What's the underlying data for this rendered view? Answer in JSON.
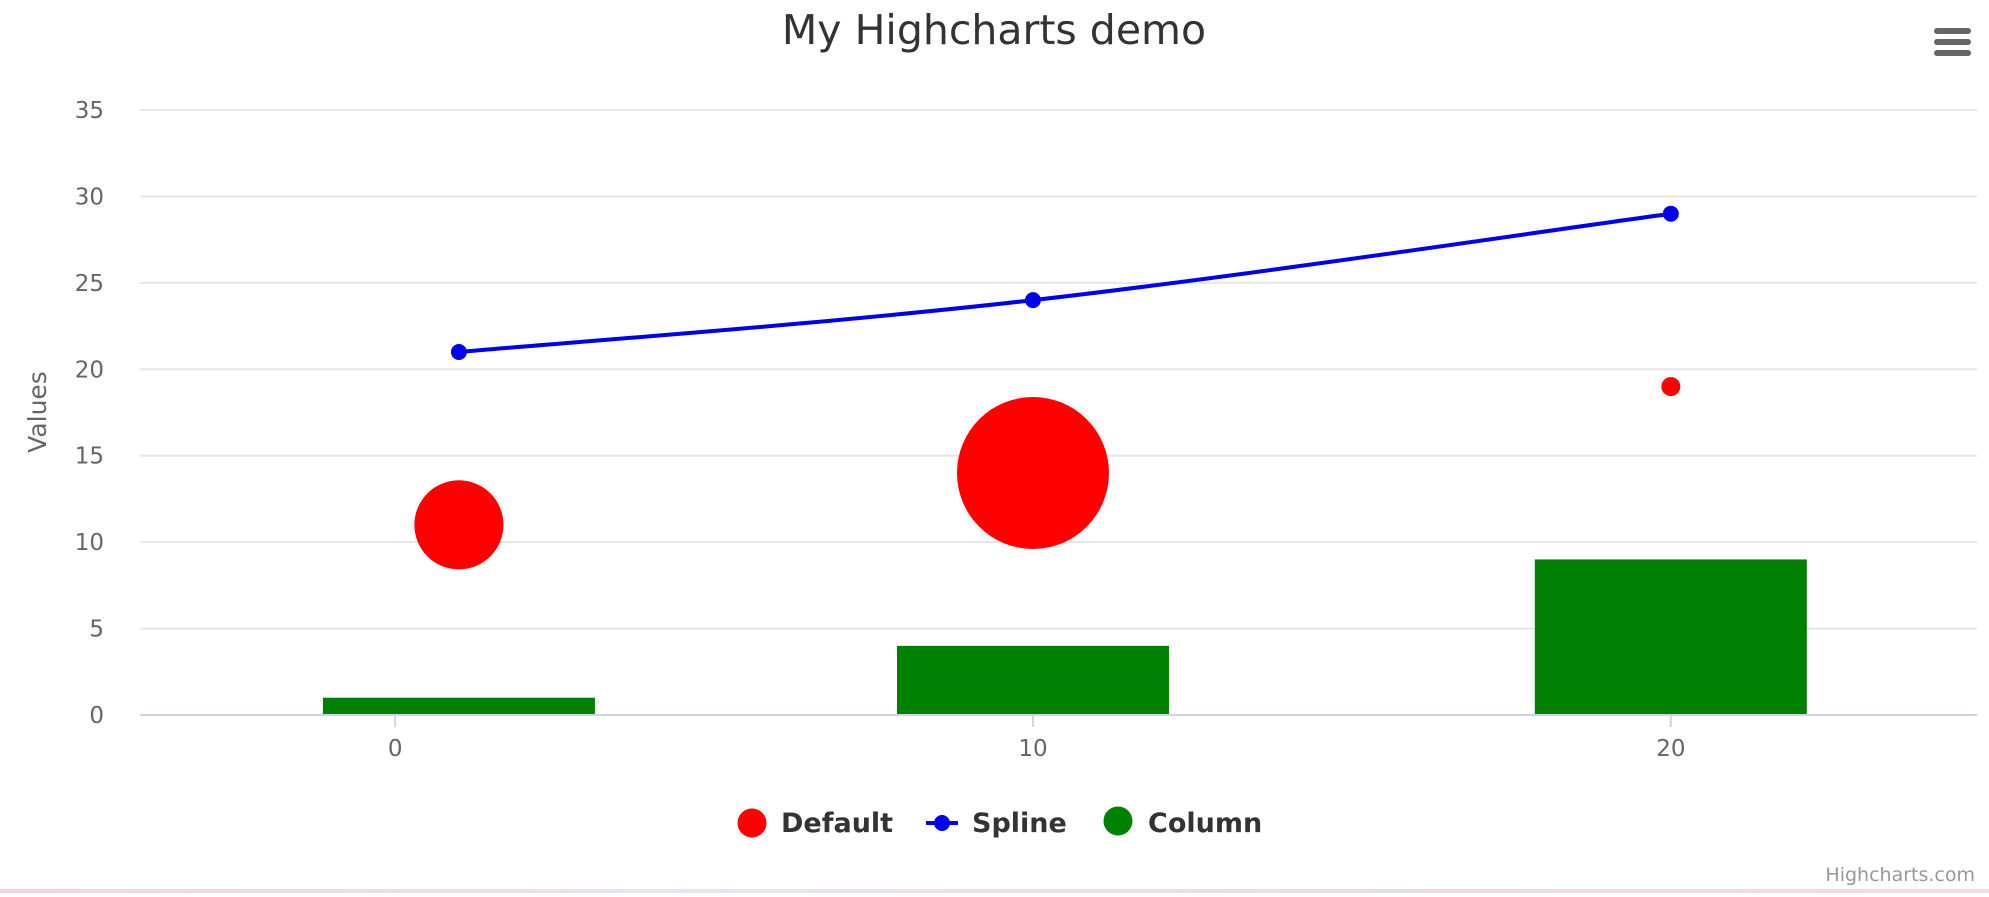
{
  "menu": {
    "icon": "hamburger-menu-icon"
  },
  "credits": {
    "text": "Highcharts.com"
  },
  "chart_data": {
    "type": "combination",
    "title": "My Highcharts demo",
    "ylabel": "Values",
    "xlabel": "",
    "xlim": [
      -4,
      24.8
    ],
    "ylim": [
      0,
      35
    ],
    "x_ticks": [
      0,
      10,
      20
    ],
    "y_ticks": [
      0,
      5,
      10,
      15,
      20,
      25,
      30,
      35
    ],
    "grid": true,
    "legend_position": "bottom-center",
    "series": [
      {
        "name": "Default",
        "type": "bubble",
        "color": "#ff0000",
        "points": [
          {
            "x": 1,
            "y": 11,
            "z": 1
          },
          {
            "x": 10,
            "y": 14,
            "z": 3
          },
          {
            "x": 20,
            "y": 19,
            "z": 0
          }
        ]
      },
      {
        "name": "Spline",
        "type": "spline",
        "color": "#0000ee",
        "points": [
          {
            "x": 1,
            "y": 21
          },
          {
            "x": 10,
            "y": 24
          },
          {
            "x": 20,
            "y": 29
          }
        ]
      },
      {
        "name": "Column",
        "type": "column",
        "color": "#008000",
        "points": [
          {
            "x": 1,
            "y": 1
          },
          {
            "x": 10,
            "y": 4
          },
          {
            "x": 20,
            "y": 9
          }
        ]
      }
    ]
  }
}
